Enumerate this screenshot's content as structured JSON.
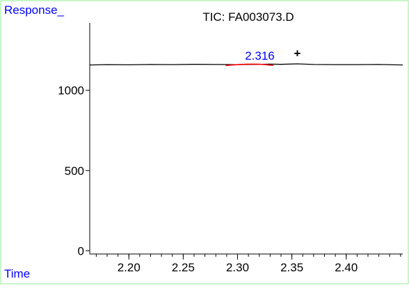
{
  "chart_data": {
    "type": "line",
    "title": "TIC: FA003073.D",
    "ylabel": "Response_",
    "xlabel": "Time",
    "xlim": [
      2.164,
      2.452
    ],
    "ylim": [
      -20,
      1420
    ],
    "x_ticks": [
      2.2,
      2.25,
      2.3,
      2.35,
      2.4
    ],
    "x_tick_labels": [
      "2.20",
      "2.25",
      "2.30",
      "2.35",
      "2.40"
    ],
    "y_ticks": [
      0,
      500,
      1000
    ],
    "y_tick_labels": [
      "0",
      "500",
      "1000"
    ],
    "x_minor_step": 0.01,
    "grid": false,
    "series": [
      {
        "color": "#000000",
        "x": [
          2.164,
          2.18,
          2.2,
          2.22,
          2.24,
          2.26,
          2.28,
          2.3,
          2.316,
          2.33,
          2.34,
          2.355,
          2.37,
          2.39,
          2.41,
          2.43,
          2.452
        ],
        "y": [
          1158,
          1160,
          1159,
          1161,
          1160,
          1162,
          1161,
          1160,
          1161,
          1163,
          1162,
          1165,
          1161,
          1160,
          1160,
          1161,
          1158
        ]
      }
    ],
    "peak": {
      "label": "2.316",
      "x": 2.316,
      "y": 1161,
      "x_start": 2.289,
      "x_end": 2.333,
      "baseline_color": "#ff0000",
      "label_color": "#0000ff"
    },
    "marker": {
      "symbol": "+",
      "x": 2.355,
      "y": 1205
    },
    "colors": {
      "frame": "#90ee90",
      "axis": "#000000",
      "axis_title": "#0000ff",
      "trace": "#000000"
    }
  }
}
